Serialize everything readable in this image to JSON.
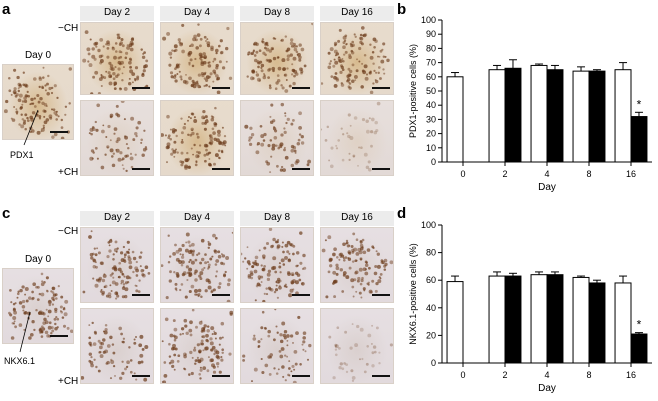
{
  "panels": {
    "a": {
      "letter": "a",
      "day0_label": "Day 0",
      "days": [
        "Day 2",
        "Day 4",
        "Day 8",
        "Day 16"
      ],
      "minus_label": "−CH",
      "plus_label": "+CH",
      "marker": "PDX1"
    },
    "b": {
      "letter": "b"
    },
    "c": {
      "letter": "c",
      "day0_label": "Day 0",
      "days": [
        "Day 2",
        "Day 4",
        "Day 8",
        "Day 16"
      ],
      "minus_label": "−CH",
      "plus_label": "+CH",
      "marker": "NKX6.1"
    },
    "d": {
      "letter": "d"
    }
  },
  "chart_data": [
    {
      "type": "bar",
      "panel": "b",
      "ylabel": "PDX1-positive cells (%)",
      "xlabel": "Day",
      "categories": [
        "0",
        "2",
        "4",
        "8",
        "16"
      ],
      "ylim": [
        0,
        100
      ],
      "yticks": [
        0,
        10,
        20,
        30,
        40,
        50,
        60,
        70,
        80,
        90,
        100
      ],
      "series": [
        {
          "fill": "#ffffff",
          "values": [
            60,
            65,
            68,
            64,
            65
          ],
          "errors": [
            3,
            3,
            1,
            3,
            5
          ]
        },
        {
          "fill": "#000000",
          "values": [
            null,
            66,
            65,
            64,
            32
          ],
          "errors": [
            null,
            6,
            3,
            1,
            3
          ]
        }
      ],
      "annotations": [
        {
          "text": "*",
          "category": "16"
        }
      ]
    },
    {
      "type": "bar",
      "panel": "d",
      "ylabel": "NKX6.1-positive cells (%)",
      "xlabel": "Day",
      "categories": [
        "0",
        "2",
        "4",
        "8",
        "16"
      ],
      "ylim": [
        0,
        100
      ],
      "yticks": [
        0,
        20,
        40,
        60,
        80,
        100
      ],
      "series": [
        {
          "fill": "#ffffff",
          "values": [
            59,
            63,
            64,
            62,
            58
          ],
          "errors": [
            4,
            3,
            2,
            1,
            5
          ]
        },
        {
          "fill": "#000000",
          "values": [
            null,
            63,
            64,
            58,
            21
          ],
          "errors": [
            null,
            2,
            2,
            2,
            1
          ]
        }
      ],
      "annotations": [
        {
          "text": "*",
          "category": "16"
        }
      ]
    }
  ]
}
